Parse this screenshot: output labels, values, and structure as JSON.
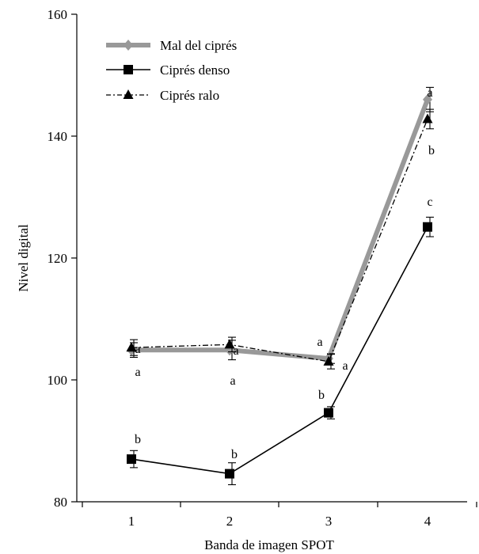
{
  "chart_data": {
    "type": "line",
    "title": "",
    "xlabel": "Banda de imagen SPOT",
    "ylabel": "Nivel digital",
    "categories": [
      "1",
      "2",
      "3",
      "4"
    ],
    "ylim": [
      80,
      160
    ],
    "yticks": [
      "80",
      "100",
      "120",
      "140",
      "160"
    ],
    "grid": false,
    "legend_position": "top-left",
    "series": [
      {
        "name": "Mal del ciprés",
        "values": [
          104.9,
          104.9,
          103.5,
          146.0
        ],
        "errors": [
          1.2,
          1.6,
          0.8,
          2.0
        ],
        "marker": "diamond",
        "line_style": "thick-solid",
        "color": "#999999",
        "letters": [
          "a",
          "a",
          "a",
          "a"
        ]
      },
      {
        "name": "Ciprés denso",
        "values": [
          87.0,
          84.6,
          94.6,
          125.1
        ],
        "errors": [
          1.4,
          1.8,
          1.0,
          1.6
        ],
        "marker": "square",
        "line_style": "solid",
        "color": "#000000",
        "letters": [
          "b",
          "b",
          "b",
          "c"
        ]
      },
      {
        "name": "Ciprés ralo",
        "values": [
          105.3,
          105.8,
          103.0,
          142.8
        ],
        "errors": [
          1.3,
          1.2,
          1.2,
          1.6
        ],
        "marker": "triangle",
        "line_style": "dash-dot",
        "color": "#000000",
        "letters": [
          "a",
          "a",
          "a",
          "b"
        ]
      }
    ]
  }
}
